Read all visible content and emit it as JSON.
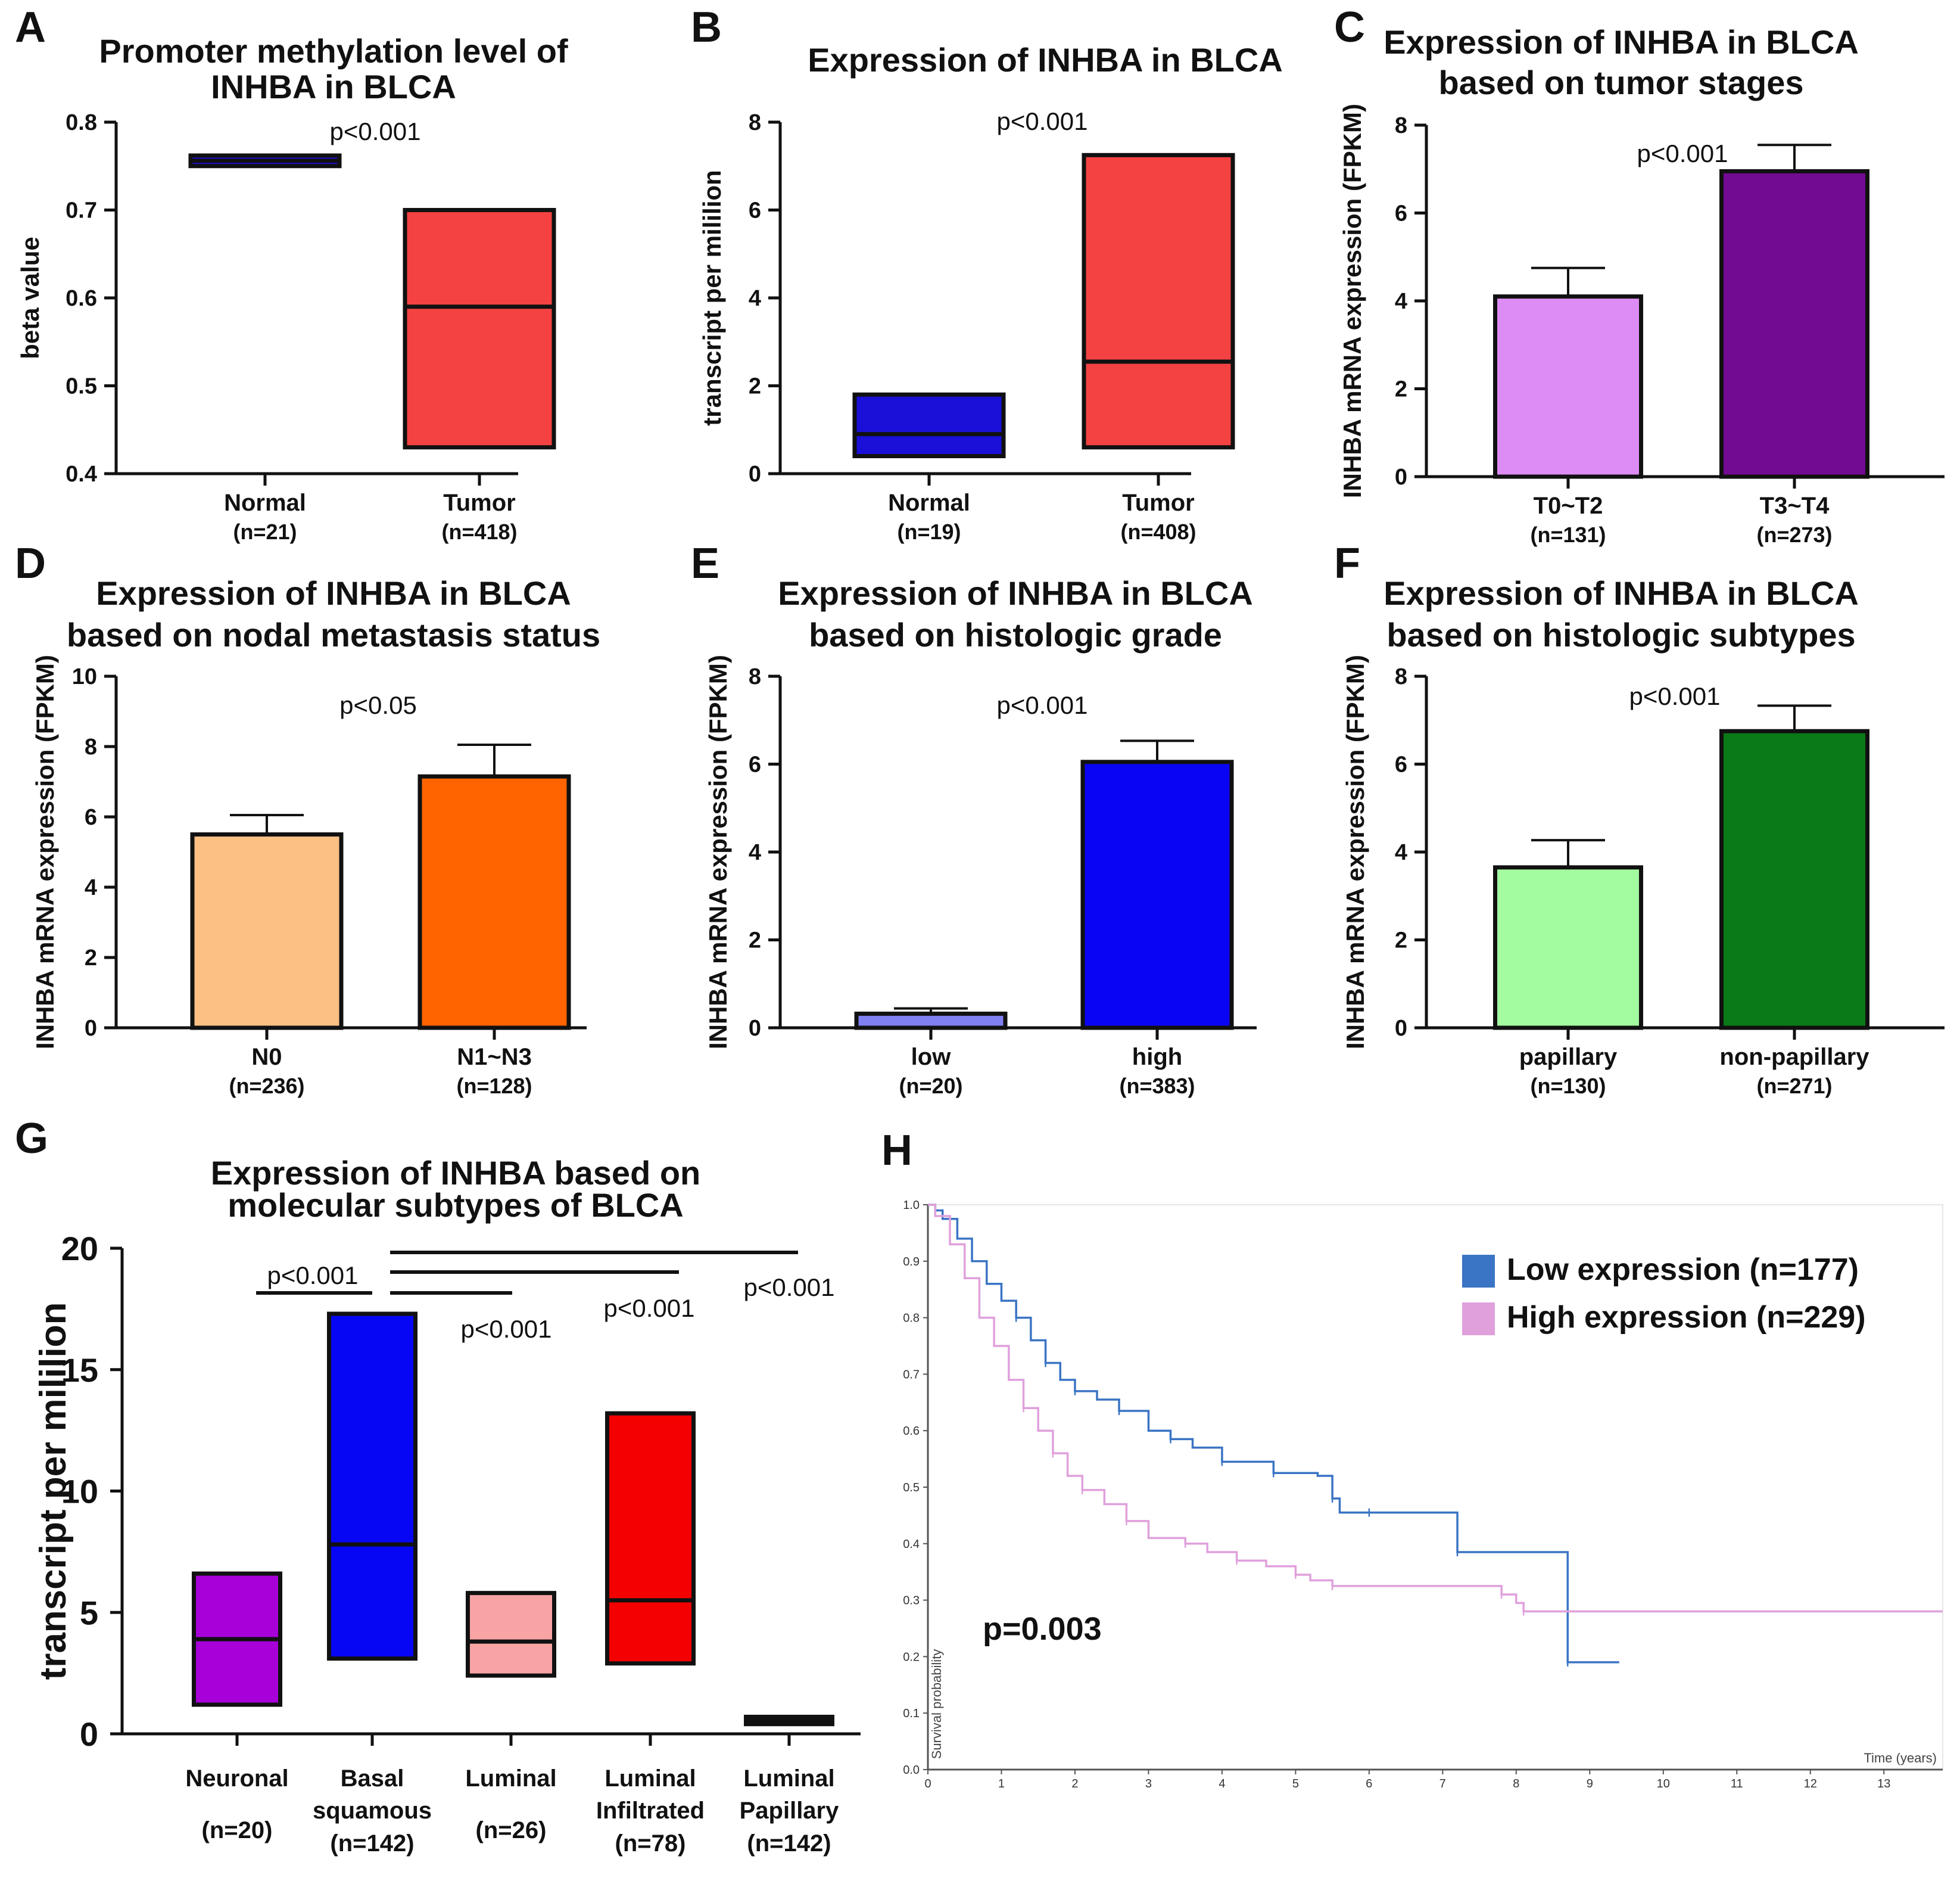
{
  "panels": [
    {
      "id": "A",
      "type": "box",
      "title": [
        "Promoter methylation level of",
        "INHBA in BLCA"
      ],
      "ylabel": "beta value",
      "yticks": [
        0.4,
        0.5,
        0.6,
        0.7,
        0.8
      ],
      "ylim": [
        0.4,
        0.8
      ],
      "pvalue": "p<0.001",
      "groups": [
        {
          "label": "Normal",
          "n": "(n=21)",
          "q1": 0.75,
          "median": 0.756,
          "q3": 0.762,
          "color": "#1a10d8"
        },
        {
          "label": "Tumor",
          "n": "(n=418)",
          "q1": 0.43,
          "median": 0.59,
          "q3": 0.7,
          "color": "#f44242"
        }
      ]
    },
    {
      "id": "B",
      "type": "box",
      "title": [
        "Expression of INHBA in BLCA"
      ],
      "ylabel": "transcript per mililion",
      "yticks": [
        0,
        2,
        4,
        6,
        8
      ],
      "ylim": [
        0,
        8
      ],
      "pvalue": "p<0.001",
      "groups": [
        {
          "label": "Normal",
          "n": "(n=19)",
          "q1": 0.4,
          "median": 0.9,
          "q3": 1.8,
          "color": "#1a10d8"
        },
        {
          "label": "Tumor",
          "n": "(n=408)",
          "q1": 0.6,
          "median": 2.55,
          "q3": 7.25,
          "color": "#f44242"
        }
      ]
    },
    {
      "id": "C",
      "type": "bar",
      "title": [
        "Expression of INHBA in BLCA",
        "based on tumor stages"
      ],
      "ylabel": "INHBA mRNA expression (FPKM)",
      "yticks": [
        0,
        2,
        4,
        6,
        8
      ],
      "ylim": [
        0,
        8
      ],
      "pvalue": "p<0.001",
      "groups": [
        {
          "label": "T0~T2",
          "n": "(n=131)",
          "value": 4.1,
          "err": 0.65,
          "color": "#de8cf5"
        },
        {
          "label": "T3~T4",
          "n": "(n=273)",
          "value": 6.95,
          "err": 0.6,
          "color": "#720a92"
        }
      ]
    },
    {
      "id": "D",
      "type": "bar",
      "title": [
        "Expression of INHBA in BLCA",
        "based on nodal metastasis status"
      ],
      "ylabel": "INHBA mRNA expression (FPKM)",
      "yticks": [
        0,
        2,
        4,
        6,
        8,
        10
      ],
      "ylim": [
        0,
        10
      ],
      "pvalue": "p<0.05",
      "groups": [
        {
          "label": "N0",
          "n": "(n=236)",
          "value": 5.5,
          "err": 0.55,
          "color": "#fcbf84"
        },
        {
          "label": "N1~N3",
          "n": "(n=128)",
          "value": 7.15,
          "err": 0.9,
          "color": "#ff6400"
        }
      ]
    },
    {
      "id": "E",
      "type": "bar",
      "title": [
        "Expression of INHBA in BLCA",
        "based on histologic grade"
      ],
      "ylabel": "INHBA mRNA expression (FPKM)",
      "yticks": [
        0,
        2,
        4,
        6,
        8
      ],
      "ylim": [
        0,
        8
      ],
      "pvalue": "p<0.001",
      "groups": [
        {
          "label": "low",
          "n": "(n=20)",
          "value": 0.32,
          "err": 0.12,
          "color": "#8080f2"
        },
        {
          "label": "high",
          "n": "(n=383)",
          "value": 6.05,
          "err": 0.48,
          "color": "#0a04f4"
        }
      ]
    },
    {
      "id": "F",
      "type": "bar",
      "title": [
        "Expression of INHBA in BLCA",
        "based on histologic subtypes"
      ],
      "ylabel": "INHBA mRNA expression (FPKM)",
      "yticks": [
        0,
        2,
        4,
        6,
        8
      ],
      "ylim": [
        0,
        8
      ],
      "pvalue": "p<0.001",
      "groups": [
        {
          "label": "papillary",
          "n": "(n=130)",
          "value": 3.65,
          "err": 0.62,
          "color": "#a4fca0"
        },
        {
          "label": "non-papillary",
          "n": "(n=271)",
          "value": 6.75,
          "err": 0.58,
          "color": "#0a7a18"
        }
      ]
    },
    {
      "id": "G",
      "type": "box",
      "title": [
        "Expression of INHBA based on",
        "molecular subtypes of BLCA"
      ],
      "ylabel": "transcript per mililion",
      "yticks": [
        0,
        5,
        10,
        15,
        20
      ],
      "ylim": [
        0,
        20
      ],
      "pvalues": [
        "p<0.001",
        "p<0.001",
        "p<0.001",
        "p<0.001"
      ],
      "groups": [
        {
          "label": [
            "Neuronal",
            "(n=20)"
          ],
          "q1": 1.2,
          "median": 3.9,
          "q3": 6.6,
          "color": "#a700d8"
        },
        {
          "label": [
            "Basal",
            "squamous",
            "(n=142)"
          ],
          "q1": 3.1,
          "median": 7.8,
          "q3": 17.3,
          "color": "#0606f4"
        },
        {
          "label": [
            "Luminal",
            "(n=26)"
          ],
          "q1": 2.4,
          "median": 3.8,
          "q3": 5.8,
          "color": "#f9a4a4"
        },
        {
          "label": [
            "Luminal",
            "Infiltrated",
            "(n=78)"
          ],
          "q1": 2.9,
          "median": 5.5,
          "q3": 13.2,
          "color": "#f40000"
        },
        {
          "label": [
            "Luminal",
            "Papillary",
            "(n=142)"
          ],
          "q1": 0.4,
          "median": 0.55,
          "q3": 0.7,
          "color": "#111111"
        }
      ]
    }
  ],
  "km": {
    "id": "H",
    "xlabel": "Time (years)",
    "ylabel": "Survival probability",
    "xticks": [
      0,
      1,
      2,
      3,
      4,
      5,
      6,
      7,
      8,
      9,
      10,
      11,
      12,
      13
    ],
    "yticks": [
      "0.0",
      "0.1",
      "0.2",
      "0.3",
      "0.4",
      "0.5",
      "0.6",
      "0.7",
      "0.8",
      "0.9",
      "1.0"
    ],
    "pvalue": "p=0.003",
    "series": [
      {
        "name": "Low expression (n=177)",
        "color": "#3a74c4",
        "points": [
          [
            0,
            1.0
          ],
          [
            0.1,
            0.99
          ],
          [
            0.2,
            0.975
          ],
          [
            0.4,
            0.94
          ],
          [
            0.6,
            0.9
          ],
          [
            0.8,
            0.86
          ],
          [
            1.0,
            0.83
          ],
          [
            1.2,
            0.8
          ],
          [
            1.4,
            0.76
          ],
          [
            1.6,
            0.72
          ],
          [
            1.8,
            0.69
          ],
          [
            2.0,
            0.67
          ],
          [
            2.3,
            0.655
          ],
          [
            2.6,
            0.635
          ],
          [
            3.0,
            0.6
          ],
          [
            3.3,
            0.585
          ],
          [
            3.6,
            0.57
          ],
          [
            4.0,
            0.545
          ],
          [
            4.6,
            0.545
          ],
          [
            4.7,
            0.525
          ],
          [
            5.3,
            0.52
          ],
          [
            5.5,
            0.48
          ],
          [
            5.6,
            0.455
          ],
          [
            6.0,
            0.455
          ],
          [
            7.2,
            0.455
          ],
          [
            7.2,
            0.385
          ],
          [
            8.7,
            0.385
          ],
          [
            8.7,
            0.19
          ],
          [
            9.4,
            0.19
          ]
        ]
      },
      {
        "name": "High expression (n=229)",
        "color": "#e0a0dc",
        "points": [
          [
            0,
            1.0
          ],
          [
            0.1,
            0.98
          ],
          [
            0.3,
            0.93
          ],
          [
            0.5,
            0.87
          ],
          [
            0.7,
            0.8
          ],
          [
            0.9,
            0.75
          ],
          [
            1.1,
            0.69
          ],
          [
            1.3,
            0.64
          ],
          [
            1.5,
            0.6
          ],
          [
            1.7,
            0.56
          ],
          [
            1.9,
            0.52
          ],
          [
            2.1,
            0.495
          ],
          [
            2.4,
            0.47
          ],
          [
            2.7,
            0.44
          ],
          [
            3.0,
            0.41
          ],
          [
            3.5,
            0.4
          ],
          [
            3.8,
            0.385
          ],
          [
            4.2,
            0.37
          ],
          [
            4.6,
            0.36
          ],
          [
            5.0,
            0.345
          ],
          [
            5.2,
            0.335
          ],
          [
            5.5,
            0.325
          ],
          [
            7.6,
            0.325
          ],
          [
            7.8,
            0.31
          ],
          [
            8.0,
            0.295
          ],
          [
            8.1,
            0.28
          ],
          [
            13.8,
            0.28
          ]
        ]
      }
    ]
  }
}
